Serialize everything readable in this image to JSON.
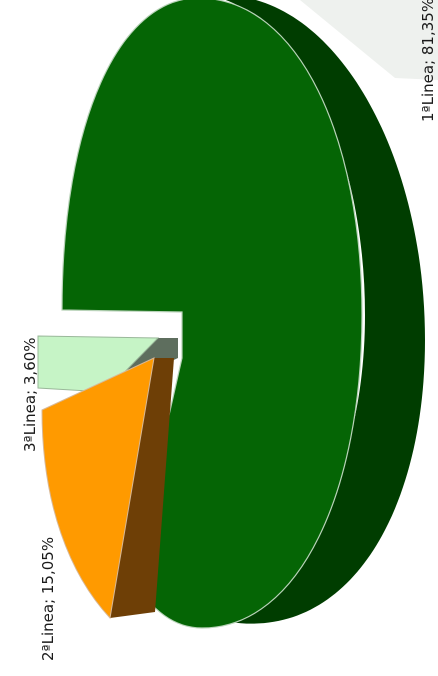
{
  "chart_data": {
    "type": "pie",
    "title": "",
    "slices": [
      {
        "name": "1ªLinea",
        "value": 81.35,
        "label": "1ªLinea; 81,35%",
        "color": "#056505",
        "side_color": "#003d00"
      },
      {
        "name": "2ªLinea",
        "value": 15.05,
        "label": "2ªLinea; 15,05%",
        "color": "#ff9a00",
        "side_color": "#6e3f06"
      },
      {
        "name": "3ªLinea",
        "value": 3.6,
        "label": "3ªLinea; 3,60%",
        "color": "#c6f4c6",
        "side_color": "#5e6e5e"
      }
    ],
    "style": "3d-exploded",
    "legend": "none"
  }
}
